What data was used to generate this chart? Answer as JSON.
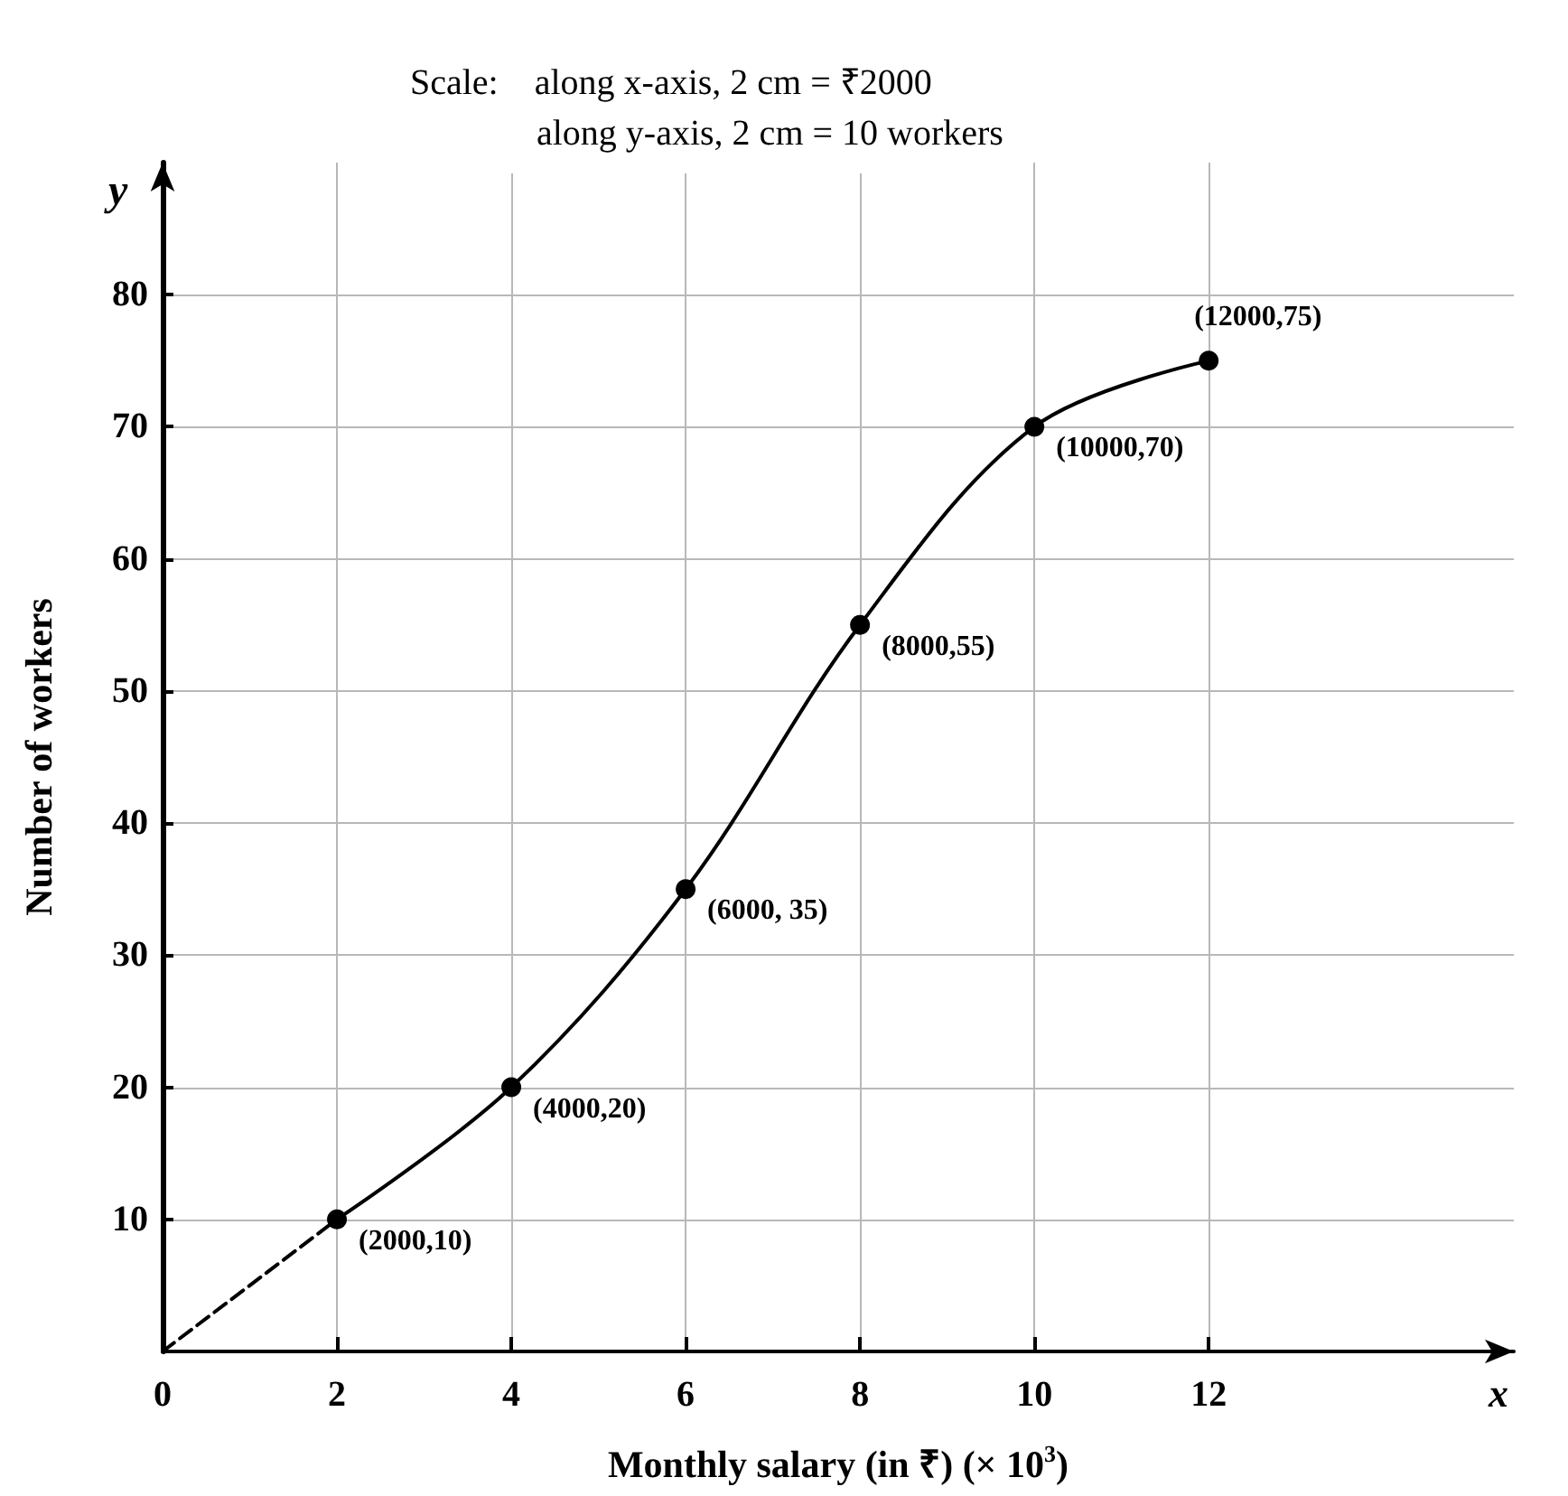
{
  "chart_data": {
    "type": "line",
    "xlabel": "Monthly salary (in ₹) (× 10$^{3}$)",
    "ylabel": "Number of workers",
    "annotations": [
      "Scale:    along x-axis, 2 cm = ₹2000\n              along y-axis, 2 cm = 10 workers",
      "x",
      "y",
      {
        "text": "(2000,10)",
        "x": 2,
        "y": 10
      },
      {
        "text": "(4000,20)",
        "x": 4,
        "y": 20
      },
      {
        "text": "(6000, 35)",
        "x": 6,
        "y": 35
      },
      {
        "text": "(8000,55)",
        "x": 8,
        "y": 55
      },
      {
        "text": "(10000,70)",
        "x": 10,
        "y": 70
      },
      {
        "text": "(12000,75)",
        "x": 12,
        "y": 75
      }
    ],
    "series": [
      {
        "color": "#000000",
        "x": [
          0,
          2
        ],
        "values": [
          0,
          10
        ],
        "line_style": "dashed"
      },
      {
        "color": "#000000",
        "x": [
          2,
          4,
          6,
          8,
          10,
          12
        ],
        "values": [
          10,
          20,
          35,
          55,
          70,
          75
        ],
        "marker": "circle",
        "line_style": "solid"
      }
    ],
    "xlim": [
      0,
      15.5
    ],
    "xticks": [
      0,
      2,
      4,
      6,
      8,
      10,
      12
    ],
    "ylim": [
      0,
      90
    ],
    "yticks": [
      10,
      20,
      30,
      40,
      50,
      60,
      70,
      80
    ],
    "grid": true
  }
}
